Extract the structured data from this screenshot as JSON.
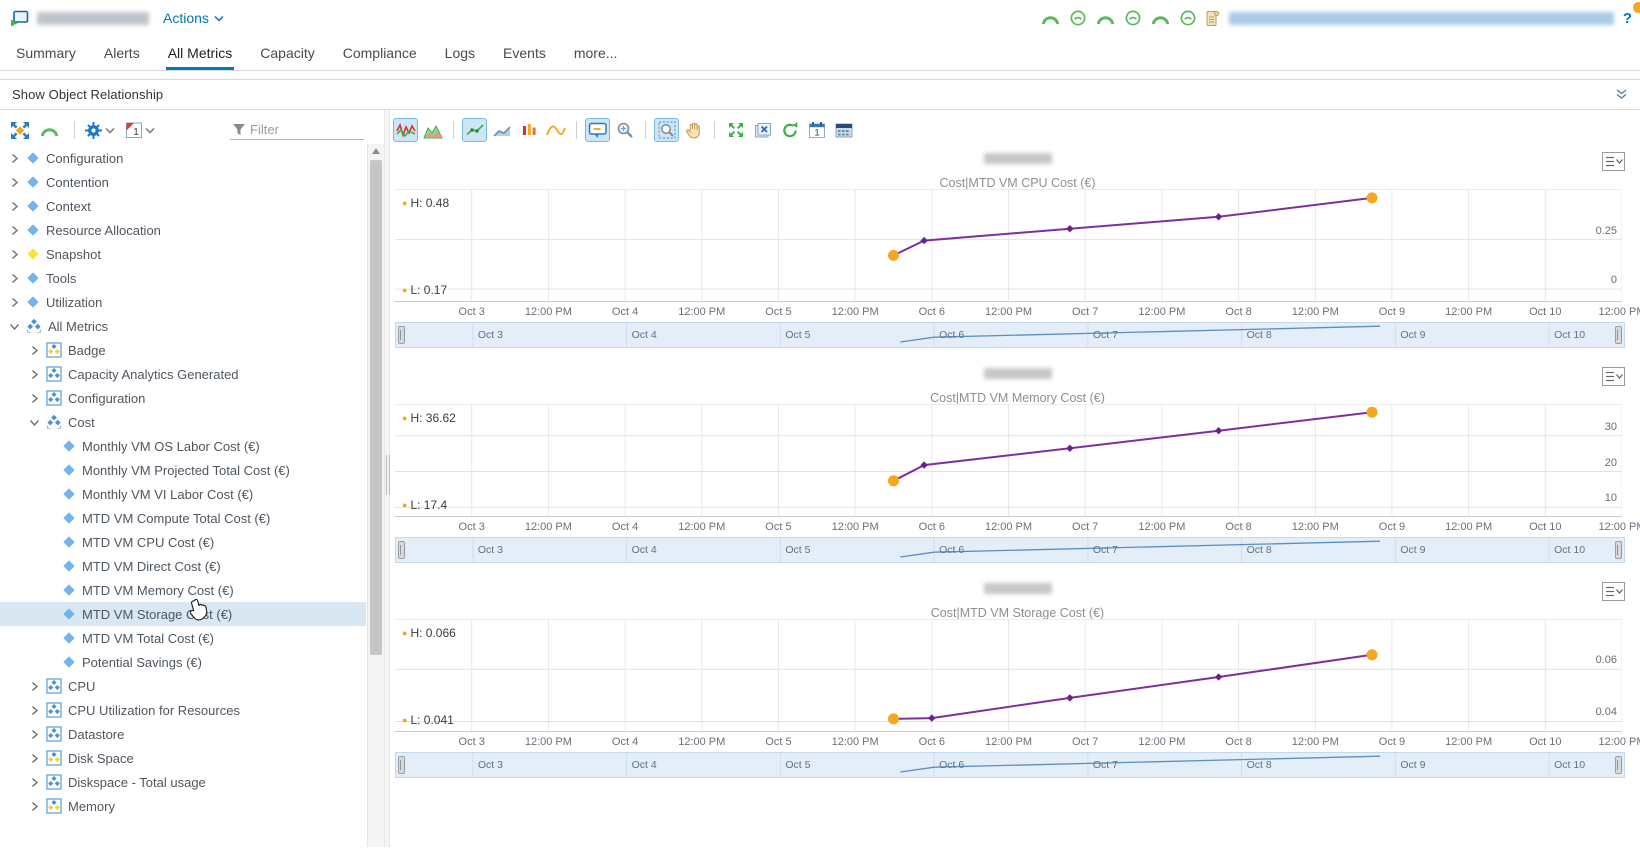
{
  "header": {
    "object_icon": "vm-object",
    "object_name_redacted": true,
    "actions_label": "Actions",
    "status_icons": [
      "gauge-arc",
      "gauge-circle",
      "gauge-arc",
      "gauge-circle",
      "gauge-arc",
      "gauge-circle"
    ],
    "log_icon": "scroll",
    "link_redacted": true,
    "help_label": "?"
  },
  "tabs": {
    "items": [
      "Summary",
      "Alerts",
      "All Metrics",
      "Capacity",
      "Compliance",
      "Logs",
      "Events",
      "more..."
    ],
    "active_index": 2
  },
  "relationship_bar": {
    "label": "Show Object Relationship",
    "collapse_icon": "double-chevron-down"
  },
  "sidebar": {
    "toolbar": {
      "icons": [
        {
          "name": "relationship-map"
        },
        {
          "name": "gauge-arc"
        },
        {
          "name": "divider"
        },
        {
          "name": "gear",
          "chevron": true
        },
        {
          "name": "calendar-1",
          "chevron": true
        }
      ],
      "filter_placeholder": "Filter"
    },
    "tree": [
      {
        "label": "Configuration",
        "icon": "diamond",
        "level": 0
      },
      {
        "label": "Contention",
        "icon": "diamond",
        "level": 0
      },
      {
        "label": "Context",
        "icon": "diamond",
        "level": 0
      },
      {
        "label": "Resource Allocation",
        "icon": "diamond",
        "level": 0
      },
      {
        "label": "Snapshot",
        "icon": "diamond-yellow",
        "level": 0
      },
      {
        "label": "Tools",
        "icon": "diamond",
        "level": 0
      },
      {
        "label": "Utilization",
        "icon": "diamond",
        "level": 0
      },
      {
        "label": "All Metrics",
        "icon": "cluster",
        "level": 0,
        "expanded": true
      },
      {
        "label": "Badge",
        "icon": "group-mixed",
        "level": 1
      },
      {
        "label": "Capacity Analytics Generated",
        "icon": "group",
        "level": 1
      },
      {
        "label": "Configuration",
        "icon": "group",
        "level": 1
      },
      {
        "label": "Cost",
        "icon": "cluster",
        "level": 1,
        "expanded": true
      },
      {
        "label": "Monthly VM OS Labor Cost (€)",
        "icon": "diamond",
        "level": 2,
        "leaf": true
      },
      {
        "label": "Monthly VM Projected Total Cost (€)",
        "icon": "diamond",
        "level": 2,
        "leaf": true
      },
      {
        "label": "Monthly VM VI Labor Cost (€)",
        "icon": "diamond",
        "level": 2,
        "leaf": true
      },
      {
        "label": "MTD VM Compute Total Cost (€)",
        "icon": "diamond",
        "level": 2,
        "leaf": true
      },
      {
        "label": "MTD VM CPU Cost (€)",
        "icon": "diamond",
        "level": 2,
        "leaf": true
      },
      {
        "label": "MTD VM Direct Cost (€)",
        "icon": "diamond",
        "level": 2,
        "leaf": true
      },
      {
        "label": "MTD VM Memory Cost (€)",
        "icon": "diamond",
        "level": 2,
        "leaf": true
      },
      {
        "label": "MTD VM Storage Cost (€)",
        "icon": "diamond",
        "level": 2,
        "leaf": true,
        "selected": true
      },
      {
        "label": "MTD VM Total Cost (€)",
        "icon": "diamond",
        "level": 2,
        "leaf": true
      },
      {
        "label": "Potential Savings (€)",
        "icon": "diamond",
        "level": 2,
        "leaf": true
      },
      {
        "label": "CPU",
        "icon": "group",
        "level": 1
      },
      {
        "label": "CPU Utilization for Resources",
        "icon": "group",
        "level": 1
      },
      {
        "label": "Datastore",
        "icon": "group",
        "level": 1
      },
      {
        "label": "Disk Space",
        "icon": "group-mixed",
        "level": 1
      },
      {
        "label": "Diskspace - Total usage",
        "icon": "group",
        "level": 1
      },
      {
        "label": "Memory",
        "icon": "group-mixed",
        "level": 1
      }
    ]
  },
  "chart_toolbar": {
    "icons": [
      {
        "name": "metric-chart",
        "active": true
      },
      {
        "name": "area-chart"
      },
      {
        "name": "divider"
      },
      {
        "name": "trend-line",
        "active": true
      },
      {
        "name": "trend-area"
      },
      {
        "name": "anomalies"
      },
      {
        "name": "forecast-wave"
      },
      {
        "name": "divider"
      },
      {
        "name": "data-tooltip",
        "active": true
      },
      {
        "name": "zoom-magnifier"
      },
      {
        "name": "divider"
      },
      {
        "name": "zoom-selection",
        "active": true
      },
      {
        "name": "pan-hand"
      },
      {
        "name": "divider"
      },
      {
        "name": "expand-views"
      },
      {
        "name": "close-views"
      },
      {
        "name": "refresh"
      },
      {
        "name": "calendar-date"
      },
      {
        "name": "date-range"
      }
    ]
  },
  "x_axis": {
    "ticks": [
      {
        "day": 0,
        "label": "Oct 3"
      },
      {
        "day": 0.5,
        "label": "12:00 PM"
      },
      {
        "day": 1,
        "label": "Oct 4"
      },
      {
        "day": 1.5,
        "label": "12:00 PM"
      },
      {
        "day": 2,
        "label": "Oct 5"
      },
      {
        "day": 2.5,
        "label": "12:00 PM"
      },
      {
        "day": 3,
        "label": "Oct 6"
      },
      {
        "day": 3.5,
        "label": "12:00 PM"
      },
      {
        "day": 4,
        "label": "Oct 7"
      },
      {
        "day": 4.5,
        "label": "12:00 PM"
      },
      {
        "day": 5,
        "label": "Oct 8"
      },
      {
        "day": 5.5,
        "label": "12:00 PM"
      },
      {
        "day": 6,
        "label": "Oct 9"
      },
      {
        "day": 6.5,
        "label": "12:00 PM"
      },
      {
        "day": 7,
        "label": "Oct 10"
      },
      {
        "day": 7.5,
        "label": "12:00 PM"
      }
    ]
  },
  "range_strip": {
    "labels": [
      "Oct 3",
      "Oct 4",
      "Oct 5",
      "Oct 6",
      "Oct 7",
      "Oct 8",
      "Oct 9",
      "Oct 10"
    ],
    "mini_points": [
      [
        2.78,
        0.82
      ],
      [
        3.0,
        0.6
      ],
      [
        5.9,
        0.1
      ]
    ]
  },
  "chart_data": [
    {
      "type": "line",
      "object_name_redacted": true,
      "subtitle": "Cost|MTD VM CPU Cost (€)",
      "high": "H: 0.48",
      "low": "L: 0.17",
      "xlim": [
        -0.5,
        7.5
      ],
      "ylim": [
        -0.07,
        0.5
      ],
      "yticks": [
        {
          "value": 0.25,
          "label": "0.25"
        },
        {
          "value": 0,
          "label": "0"
        }
      ],
      "points": [
        [
          2.75,
          0.17
        ],
        [
          2.95,
          0.245
        ],
        [
          3.9,
          0.305
        ],
        [
          4.87,
          0.365
        ],
        [
          5.87,
          0.46
        ]
      ]
    },
    {
      "type": "line",
      "object_name_redacted": true,
      "subtitle": "Cost|MTD VM Memory Cost (€)",
      "high": "H: 36.62",
      "low": "L: 17.4",
      "xlim": [
        -0.5,
        7.5
      ],
      "ylim": [
        7,
        38.6
      ],
      "yticks": [
        {
          "value": 30,
          "label": "30"
        },
        {
          "value": 20,
          "label": "20"
        },
        {
          "value": 10,
          "label": "10"
        }
      ],
      "points": [
        [
          2.75,
          17.4
        ],
        [
          2.95,
          21.8
        ],
        [
          3.9,
          26.5
        ],
        [
          4.87,
          31.4
        ],
        [
          5.87,
          36.6
        ]
      ]
    },
    {
      "type": "line",
      "object_name_redacted": true,
      "subtitle": "Cost|MTD VM Storage Cost (€)",
      "high": "H: 0.066",
      "low": "L: 0.041",
      "xlim": [
        -0.5,
        7.5
      ],
      "ylim": [
        0.0356,
        0.0788
      ],
      "yticks": [
        {
          "value": 0.06,
          "label": "0.06"
        },
        {
          "value": 0.04,
          "label": "0.04"
        }
      ],
      "points": [
        [
          2.75,
          0.041
        ],
        [
          3.0,
          0.0413
        ],
        [
          3.9,
          0.049
        ],
        [
          4.87,
          0.057
        ],
        [
          5.87,
          0.0655
        ]
      ]
    }
  ],
  "colors": {
    "accent": "#0079b8",
    "line": "#7c2fa0",
    "marker": "#6a1f8e",
    "endpoint": "#f5a623",
    "selected_row": "#d9e7f2",
    "strip_bg": "#e3eef8",
    "mini_line": "#5b8fc0"
  }
}
